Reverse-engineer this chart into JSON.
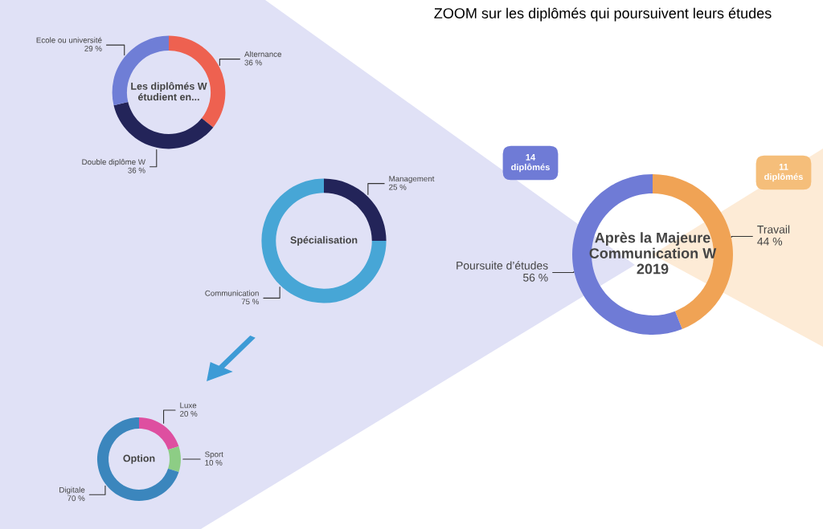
{
  "chart_data": [
    {
      "type": "donut",
      "title": "Les diplômés W\nétudient en...",
      "categories": [
        "Alternance",
        "Double diplôme W",
        "Ecole ou université"
      ],
      "values": [
        36,
        36,
        29
      ],
      "value_labels": [
        "36 %",
        "36 %",
        "29 %"
      ],
      "colors": [
        "#ee6150",
        "#232459",
        "#6f7ed6"
      ]
    },
    {
      "type": "donut",
      "title": "Spécialisation",
      "categories": [
        "Management",
        "Communication"
      ],
      "values": [
        25,
        75
      ],
      "value_labels": [
        "25 %",
        "75 %"
      ],
      "colors": [
        "#232459",
        "#47a6d6"
      ]
    },
    {
      "type": "donut",
      "title": "Option",
      "categories": [
        "Luxe",
        "Sport",
        "Digitale"
      ],
      "values": [
        20,
        10,
        70
      ],
      "value_labels": [
        "20 %",
        "10 %",
        "70 %"
      ],
      "colors": [
        "#de4fa0",
        "#8dcd85",
        "#3b86bd"
      ]
    },
    {
      "type": "donut",
      "title": "Après la Majeure\nCommunication W\n2019",
      "categories": [
        "Travail",
        "Poursuite d’études"
      ],
      "values": [
        44,
        56
      ],
      "value_labels": [
        "44 %",
        "56 %"
      ],
      "colors": [
        "#f0a355",
        "#6f7bd6"
      ],
      "annotations": [
        "ZOOM sur les diplômés qui poursuivent leurs études",
        "14\ndiplômés",
        "11\ndiplômés"
      ]
    }
  ]
}
